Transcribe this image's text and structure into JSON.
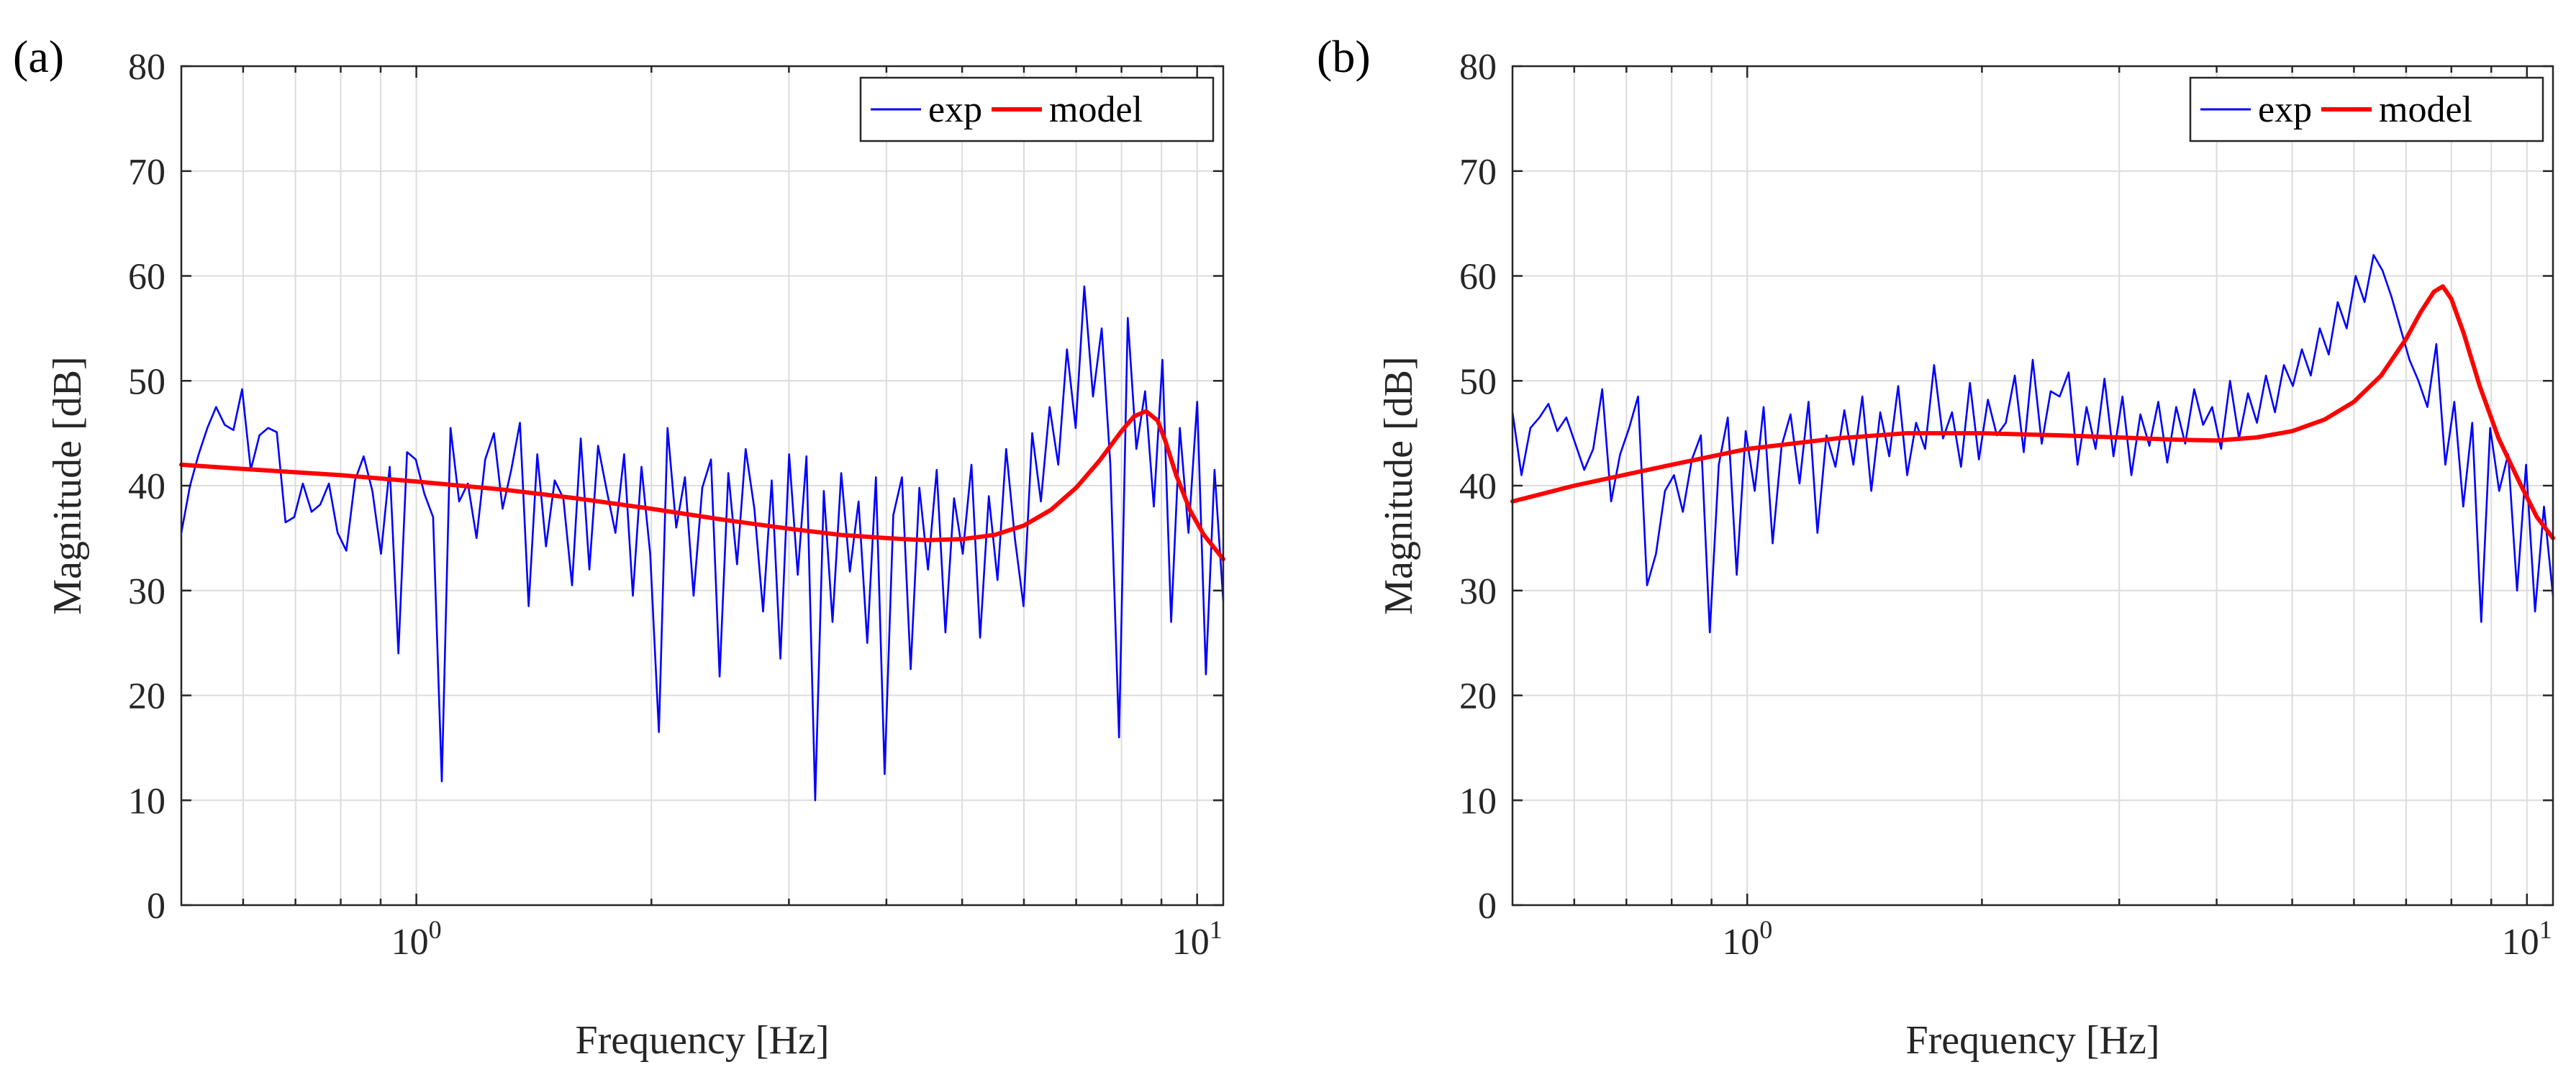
{
  "colors": {
    "exp": "#0000ff",
    "model": "#ff0000",
    "grid": "#dcdcdc",
    "axis": "#262626"
  },
  "chart_data": [
    {
      "panel_label": "(a)",
      "type": "line",
      "xscale": "log",
      "xlabel": "Frequency [Hz]",
      "ylabel": "Magnitude [dB]",
      "xlim": [
        0.5,
        10.8
      ],
      "ylim": [
        0,
        80
      ],
      "yticks": [
        "0",
        "10",
        "20",
        "30",
        "40",
        "50",
        "60",
        "70",
        "80"
      ],
      "xticks": [
        {
          "base": "10",
          "exp": "0",
          "value": 1
        },
        {
          "base": "10",
          "exp": "1",
          "value": 10
        }
      ],
      "grid": true,
      "legend": {
        "position": "top-right",
        "entries": [
          "exp",
          "model"
        ]
      },
      "model": {
        "x": [
          0.5,
          0.6,
          0.8,
          1.0,
          1.3,
          1.6,
          2.0,
          2.5,
          3.0,
          3.5,
          4.0,
          4.5,
          5.0,
          5.5,
          6.0,
          6.5,
          7.0,
          7.5,
          8.0,
          8.3,
          8.6,
          8.9,
          9.1,
          9.4,
          9.8,
          10.2,
          10.8
        ],
        "y": [
          42.0,
          41.6,
          41.0,
          40.4,
          39.6,
          38.8,
          37.8,
          36.7,
          35.9,
          35.3,
          35.0,
          34.8,
          34.9,
          35.3,
          36.2,
          37.7,
          39.8,
          42.4,
          45.2,
          46.6,
          47.1,
          46.2,
          44.3,
          41.0,
          37.6,
          35.3,
          33.0
        ]
      },
      "exp": {
        "x_start": 0.5,
        "x_end": 10.8,
        "y": [
          35.5,
          40,
          43,
          45.5,
          47.5,
          45.8,
          45.3,
          49.2,
          41.5,
          44.8,
          45.5,
          45.1,
          36.5,
          37,
          40.2,
          37.5,
          38.2,
          40.2,
          35.5,
          33.8,
          40.5,
          42.8,
          39.5,
          33.5,
          41.8,
          24,
          43.2,
          42.5,
          39.2,
          37,
          11.8,
          45.5,
          38.5,
          40.2,
          35,
          42.5,
          45,
          37.8,
          41.5,
          46,
          28.5,
          43,
          34.2,
          40.5,
          38.8,
          30.5,
          44.5,
          32,
          43.8,
          39.5,
          35.5,
          43,
          29.5,
          41.8,
          33.5,
          16.5,
          45.5,
          36,
          40.8,
          29.5,
          39.8,
          42.5,
          21.8,
          41.2,
          32.5,
          43.5,
          37.8,
          28,
          40.5,
          23.5,
          43,
          31.5,
          42.8,
          10,
          39.5,
          27,
          41.2,
          31.8,
          38.5,
          25,
          40.8,
          12.5,
          37.2,
          40.8,
          22.5,
          39.8,
          32,
          41.5,
          26,
          38.8,
          33.5,
          42,
          25.5,
          39,
          31,
          43.5,
          35,
          28.5,
          45,
          38.5,
          47.5,
          42,
          53,
          45.5,
          59,
          48.5,
          55,
          42,
          16,
          56,
          43.5,
          49,
          38,
          52,
          27,
          45.5,
          35.5,
          48,
          22,
          41.5,
          29
        ]
      }
    },
    {
      "panel_label": "(b)",
      "type": "line",
      "xscale": "log",
      "xlabel": "Frequency [Hz]",
      "ylabel": "Magnitude [dB]",
      "xlim": [
        0.5,
        10.8
      ],
      "ylim": [
        0,
        80
      ],
      "yticks": [
        "0",
        "10",
        "20",
        "30",
        "40",
        "50",
        "60",
        "70",
        "80"
      ],
      "xticks": [
        {
          "base": "10",
          "exp": "0",
          "value": 1
        },
        {
          "base": "10",
          "exp": "1",
          "value": 10
        }
      ],
      "grid": true,
      "legend": {
        "position": "top-right",
        "entries": [
          "exp",
          "model"
        ]
      },
      "model": {
        "x": [
          0.5,
          0.6,
          0.8,
          1.0,
          1.3,
          1.6,
          2.0,
          2.5,
          3.0,
          3.5,
          4.0,
          4.5,
          5.0,
          5.5,
          6.0,
          6.5,
          7.0,
          7.3,
          7.6,
          7.8,
          8.0,
          8.3,
          8.7,
          9.2,
          9.8,
          10.3,
          10.8
        ],
        "y": [
          38.5,
          40.0,
          42.0,
          43.5,
          44.5,
          45.0,
          45.0,
          44.8,
          44.6,
          44.4,
          44.3,
          44.6,
          45.2,
          46.3,
          48.0,
          50.5,
          54.0,
          56.5,
          58.5,
          59.0,
          57.8,
          54.5,
          49.5,
          44.5,
          40.2,
          37.0,
          35.0
        ]
      },
      "exp": {
        "x_start": 0.5,
        "x_end": 10.8,
        "y": [
          47,
          41,
          45.5,
          46.5,
          47.8,
          45.2,
          46.5,
          44,
          41.5,
          43.5,
          49.2,
          38.5,
          43,
          45.5,
          48.5,
          30.5,
          33.5,
          39.5,
          41,
          37.5,
          42.5,
          44.8,
          26,
          42,
          46.5,
          31.5,
          45.2,
          39.5,
          47.5,
          34.5,
          43.8,
          46.8,
          40.2,
          48,
          35.5,
          44.8,
          41.8,
          47.2,
          42,
          48.5,
          39.5,
          47,
          42.8,
          49.5,
          41,
          46,
          43.5,
          51.5,
          44.5,
          47,
          41.8,
          49.8,
          42.5,
          48.2,
          44.8,
          46,
          50.5,
          43.2,
          52,
          44,
          49,
          48.5,
          50.8,
          42,
          47.5,
          43.5,
          50.2,
          42.8,
          48.5,
          41,
          46.8,
          43.8,
          48,
          42.2,
          47.5,
          44,
          49.2,
          45.8,
          47.5,
          43.5,
          50,
          44.5,
          48.8,
          46,
          50.5,
          47,
          51.5,
          49.5,
          53,
          50.5,
          55,
          52.5,
          57.5,
          55,
          60,
          57.5,
          62,
          60.5,
          58,
          55,
          52,
          50,
          47.5,
          53.5,
          42,
          48,
          38,
          46,
          27,
          45.5,
          39.5,
          43,
          30,
          42,
          28,
          38,
          29.5
        ]
      }
    }
  ]
}
